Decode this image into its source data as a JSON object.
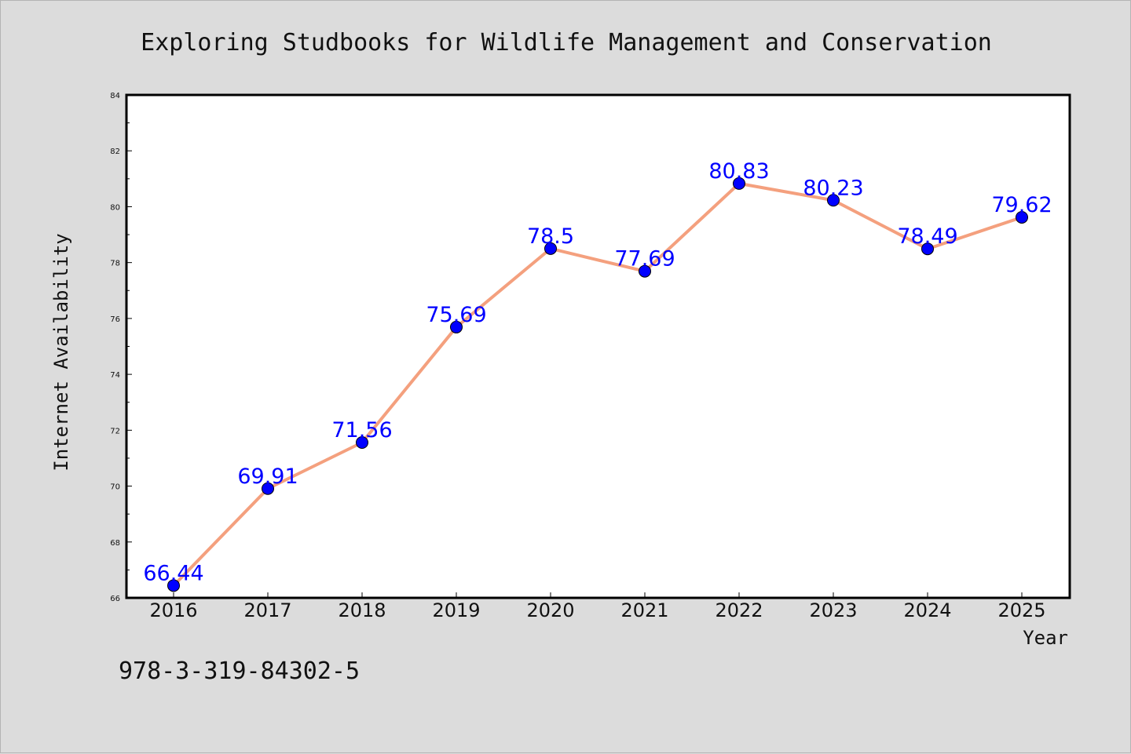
{
  "chart_data": {
    "type": "line",
    "title": "Exploring Studbooks for Wildlife Management and Conservation",
    "xlabel": "Year",
    "ylabel": "Internet Availability",
    "categories": [
      "2016",
      "2017",
      "2018",
      "2019",
      "2020",
      "2021",
      "2022",
      "2023",
      "2024",
      "2025"
    ],
    "values": [
      66.44,
      69.91,
      71.56,
      75.69,
      78.5,
      77.69,
      80.83,
      80.23,
      78.49,
      79.62
    ],
    "data_labels": [
      "66.44",
      "69.91",
      "71.56",
      "75.69",
      "78.5",
      "77.69",
      "80.83",
      "80.23",
      "78.49",
      "79.62"
    ],
    "ylim": [
      66,
      84
    ],
    "yticks": [
      66,
      68,
      70,
      72,
      74,
      76,
      78,
      80,
      82,
      84
    ],
    "grid": false,
    "colors": {
      "line": "#f4a07e",
      "marker": "#0000ff",
      "label": "#0000ff",
      "background": "#dcdcdc",
      "plot_bg": "#ffffff"
    }
  },
  "footer_text": "978-3-319-84302-5"
}
